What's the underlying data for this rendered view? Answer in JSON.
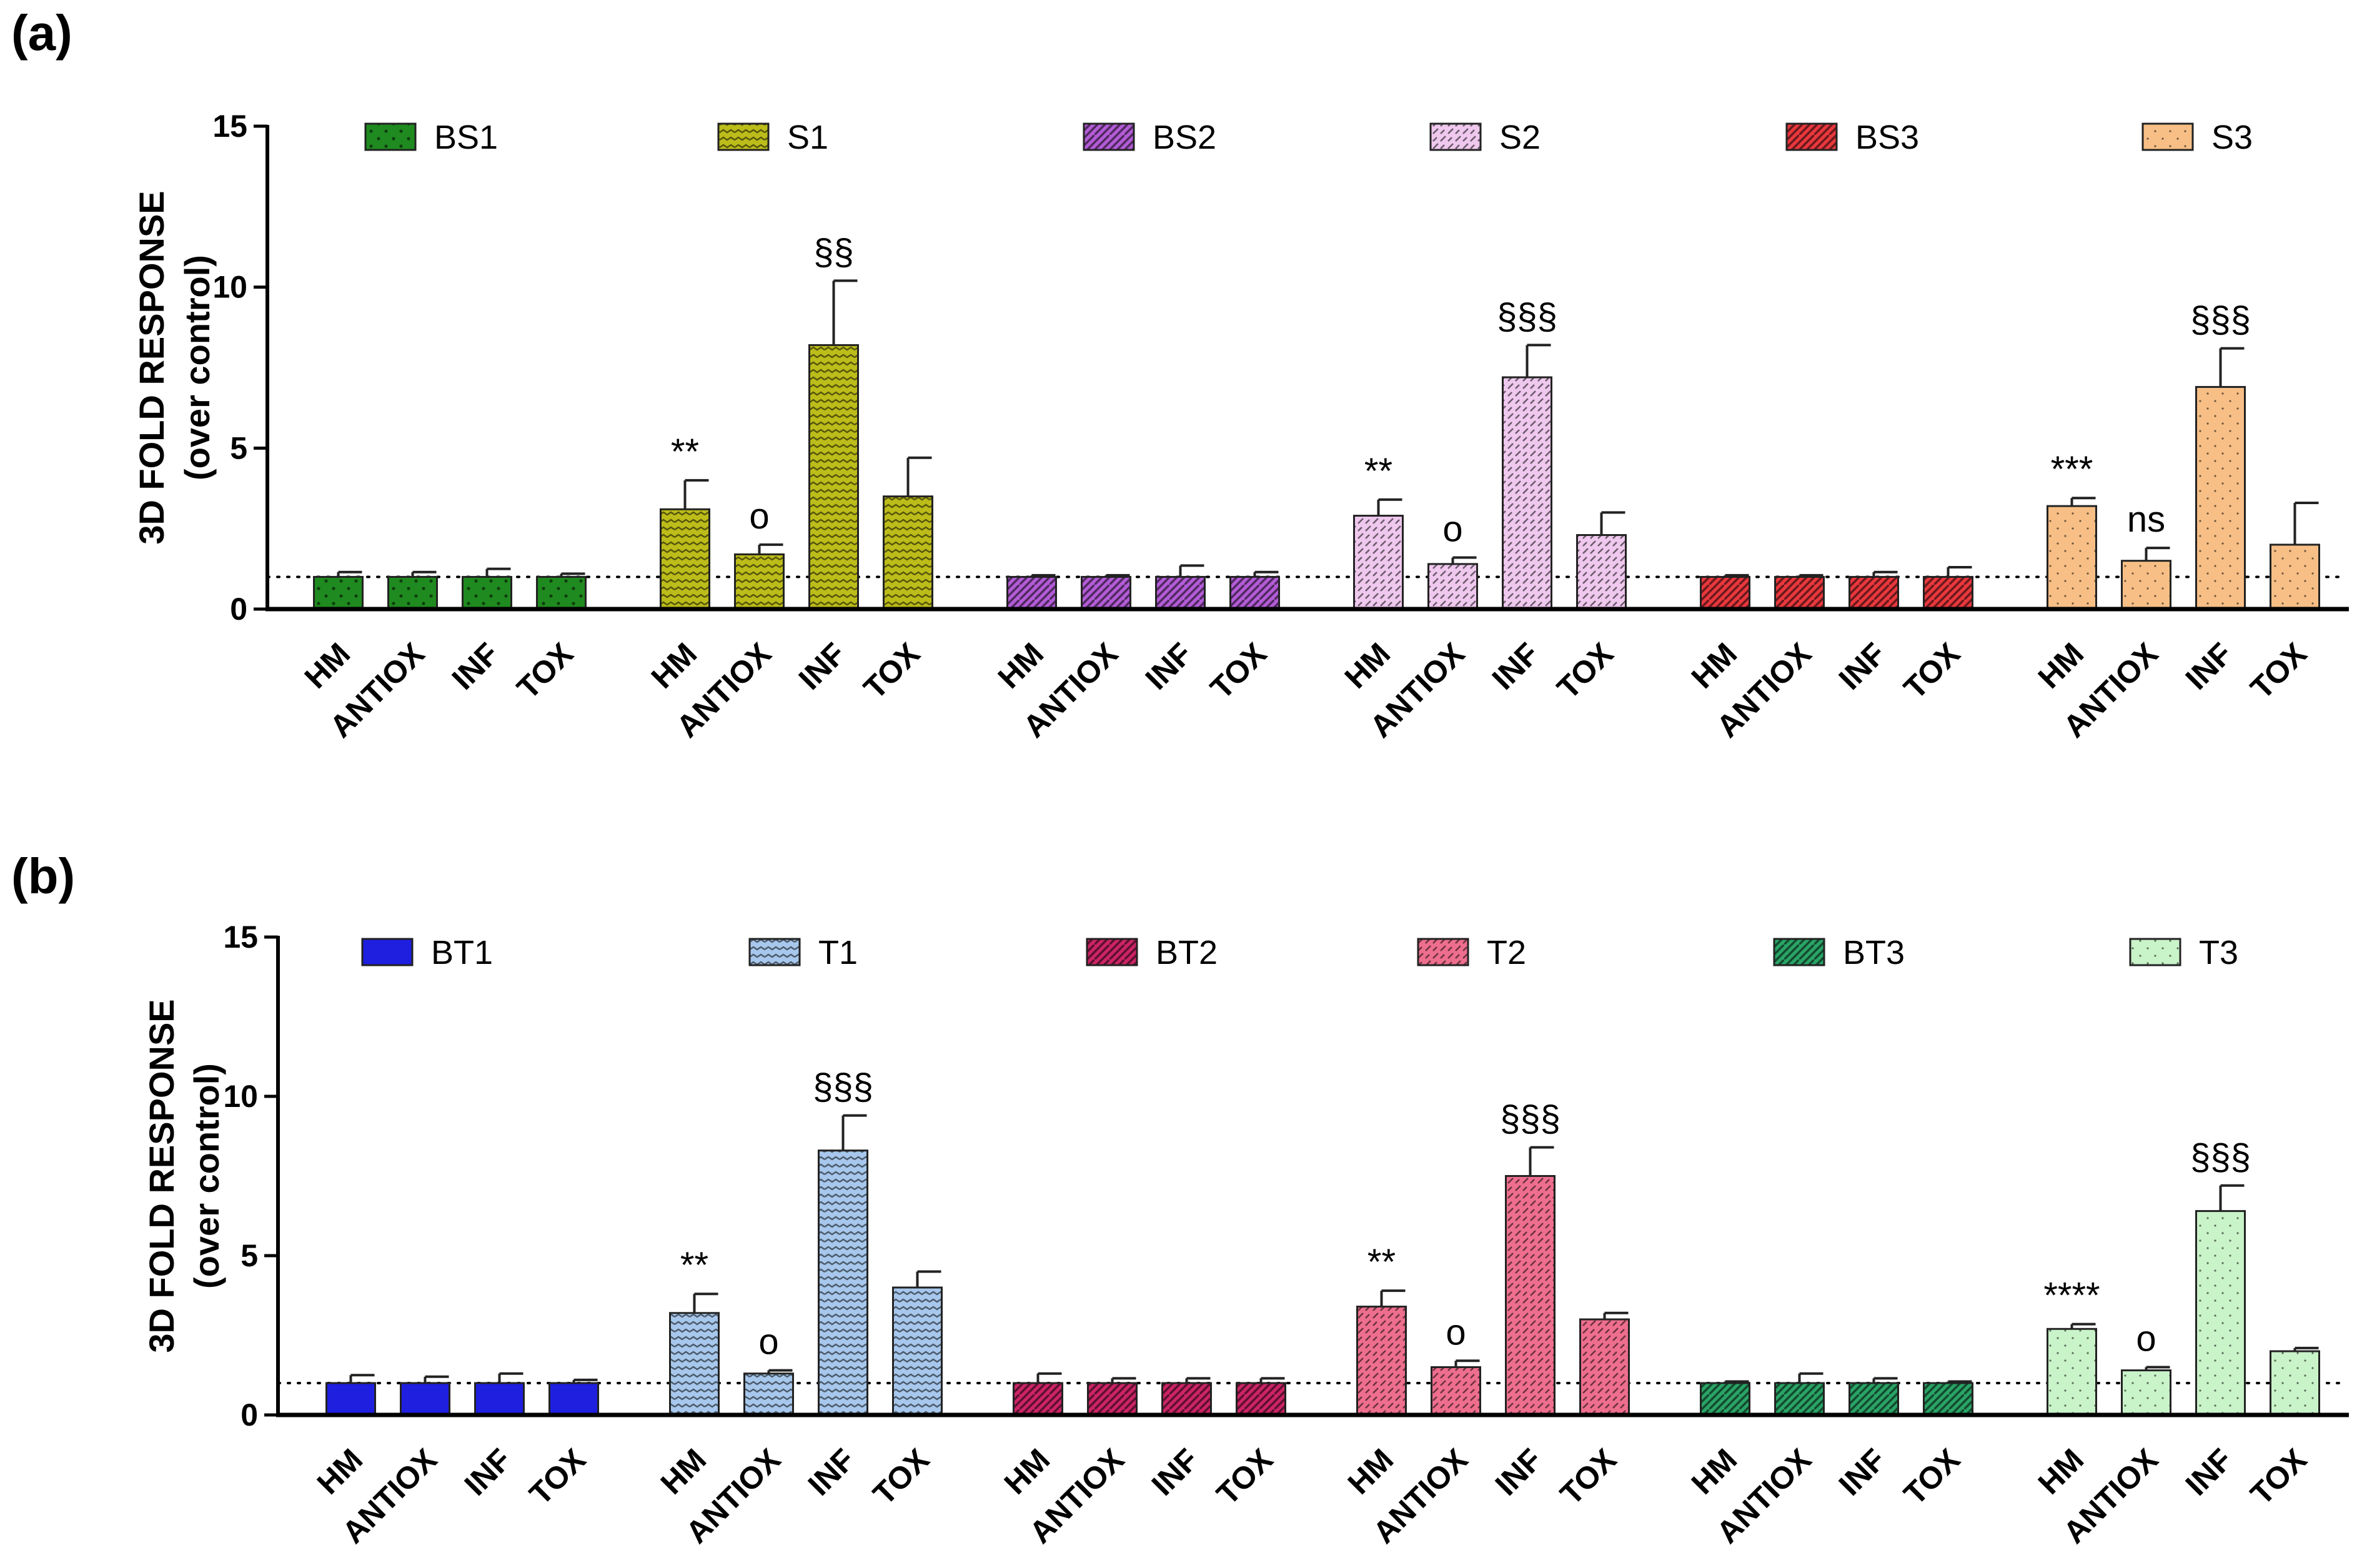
{
  "chart_data": [
    {
      "panel": "(a)",
      "type": "bar",
      "ylabel_line1": "3D FOLD RESPONSE",
      "ylabel_line2": "(over control)",
      "ylim": [
        0,
        15
      ],
      "yticks": [
        0,
        5,
        10,
        15
      ],
      "reference_line": 1,
      "categories": [
        "HM",
        "ANTIOX",
        "INF",
        "TOX"
      ],
      "series": [
        {
          "name": "BS1",
          "color": "#1f8a1f",
          "pattern": "dots",
          "values": [
            1.0,
            1.0,
            1.0,
            1.0
          ],
          "errors": [
            0.15,
            0.15,
            0.25,
            0.1
          ],
          "annotations": [
            "",
            "",
            "",
            ""
          ]
        },
        {
          "name": "S1",
          "color": "#bcbc1a",
          "pattern": "wave",
          "values": [
            3.1,
            1.7,
            8.2,
            3.5
          ],
          "errors": [
            0.9,
            0.3,
            2.0,
            1.2
          ],
          "annotations": [
            "**",
            "o",
            "§§",
            ""
          ]
        },
        {
          "name": "BS2",
          "color": "#b35cd6",
          "pattern": "stripes",
          "values": [
            1.0,
            1.0,
            1.0,
            1.0
          ],
          "errors": [
            0.05,
            0.05,
            0.35,
            0.15
          ],
          "annotations": [
            "",
            "",
            "",
            ""
          ]
        },
        {
          "name": "S2",
          "color": "#efc8ee",
          "pattern": "dashes",
          "values": [
            2.9,
            1.4,
            7.2,
            2.3
          ],
          "errors": [
            0.5,
            0.2,
            1.0,
            0.7
          ],
          "annotations": [
            "**",
            "o",
            "§§§",
            ""
          ]
        },
        {
          "name": "BS3",
          "color": "#e8383d",
          "pattern": "stripes",
          "values": [
            1.0,
            1.0,
            1.0,
            1.0
          ],
          "errors": [
            0.05,
            0.05,
            0.15,
            0.3
          ],
          "annotations": [
            "",
            "",
            "",
            ""
          ]
        },
        {
          "name": "S3",
          "color": "#f7bf86",
          "pattern": "finedots",
          "values": [
            3.2,
            1.5,
            6.9,
            2.0
          ],
          "errors": [
            0.25,
            0.4,
            1.2,
            1.3
          ],
          "annotations": [
            "***",
            "ns",
            "§§§",
            ""
          ]
        }
      ]
    },
    {
      "panel": "(b)",
      "type": "bar",
      "ylabel_line1": "3D FOLD RESPONSE",
      "ylabel_line2": "(over control)",
      "ylim": [
        0,
        15
      ],
      "yticks": [
        0,
        5,
        10,
        15
      ],
      "reference_line": 1,
      "categories": [
        "HM",
        "ANTIOX",
        "INF",
        "TOX"
      ],
      "series": [
        {
          "name": "BT1",
          "color": "#1f1fe0",
          "pattern": "none",
          "values": [
            1.0,
            1.0,
            1.0,
            1.0
          ],
          "errors": [
            0.25,
            0.2,
            0.3,
            0.1
          ],
          "annotations": [
            "",
            "",
            "",
            ""
          ]
        },
        {
          "name": "T1",
          "color": "#a7c7ec",
          "pattern": "wave",
          "values": [
            3.2,
            1.3,
            8.3,
            4.0
          ],
          "errors": [
            0.6,
            0.1,
            1.1,
            0.5
          ],
          "annotations": [
            "**",
            "o",
            "§§§",
            ""
          ]
        },
        {
          "name": "BT2",
          "color": "#cc2466",
          "pattern": "stripes",
          "values": [
            1.0,
            1.0,
            1.0,
            1.0
          ],
          "errors": [
            0.3,
            0.15,
            0.15,
            0.15
          ],
          "annotations": [
            "",
            "",
            "",
            ""
          ]
        },
        {
          "name": "T2",
          "color": "#ee6e8e",
          "pattern": "dashes",
          "values": [
            3.4,
            1.5,
            7.5,
            3.0
          ],
          "errors": [
            0.5,
            0.2,
            0.9,
            0.2
          ],
          "annotations": [
            "**",
            "o",
            "§§§",
            ""
          ]
        },
        {
          "name": "BT3",
          "color": "#2aa466",
          "pattern": "stripes",
          "values": [
            1.0,
            1.0,
            1.0,
            1.0
          ],
          "errors": [
            0.05,
            0.3,
            0.15,
            0.05
          ],
          "annotations": [
            "",
            "",
            "",
            ""
          ]
        },
        {
          "name": "T3",
          "color": "#c9f3c9",
          "pattern": "finedots",
          "values": [
            2.7,
            1.4,
            6.4,
            2.0
          ],
          "errors": [
            0.15,
            0.1,
            0.8,
            0.1
          ],
          "annotations": [
            "****",
            "o",
            "§§§",
            ""
          ]
        }
      ]
    }
  ]
}
